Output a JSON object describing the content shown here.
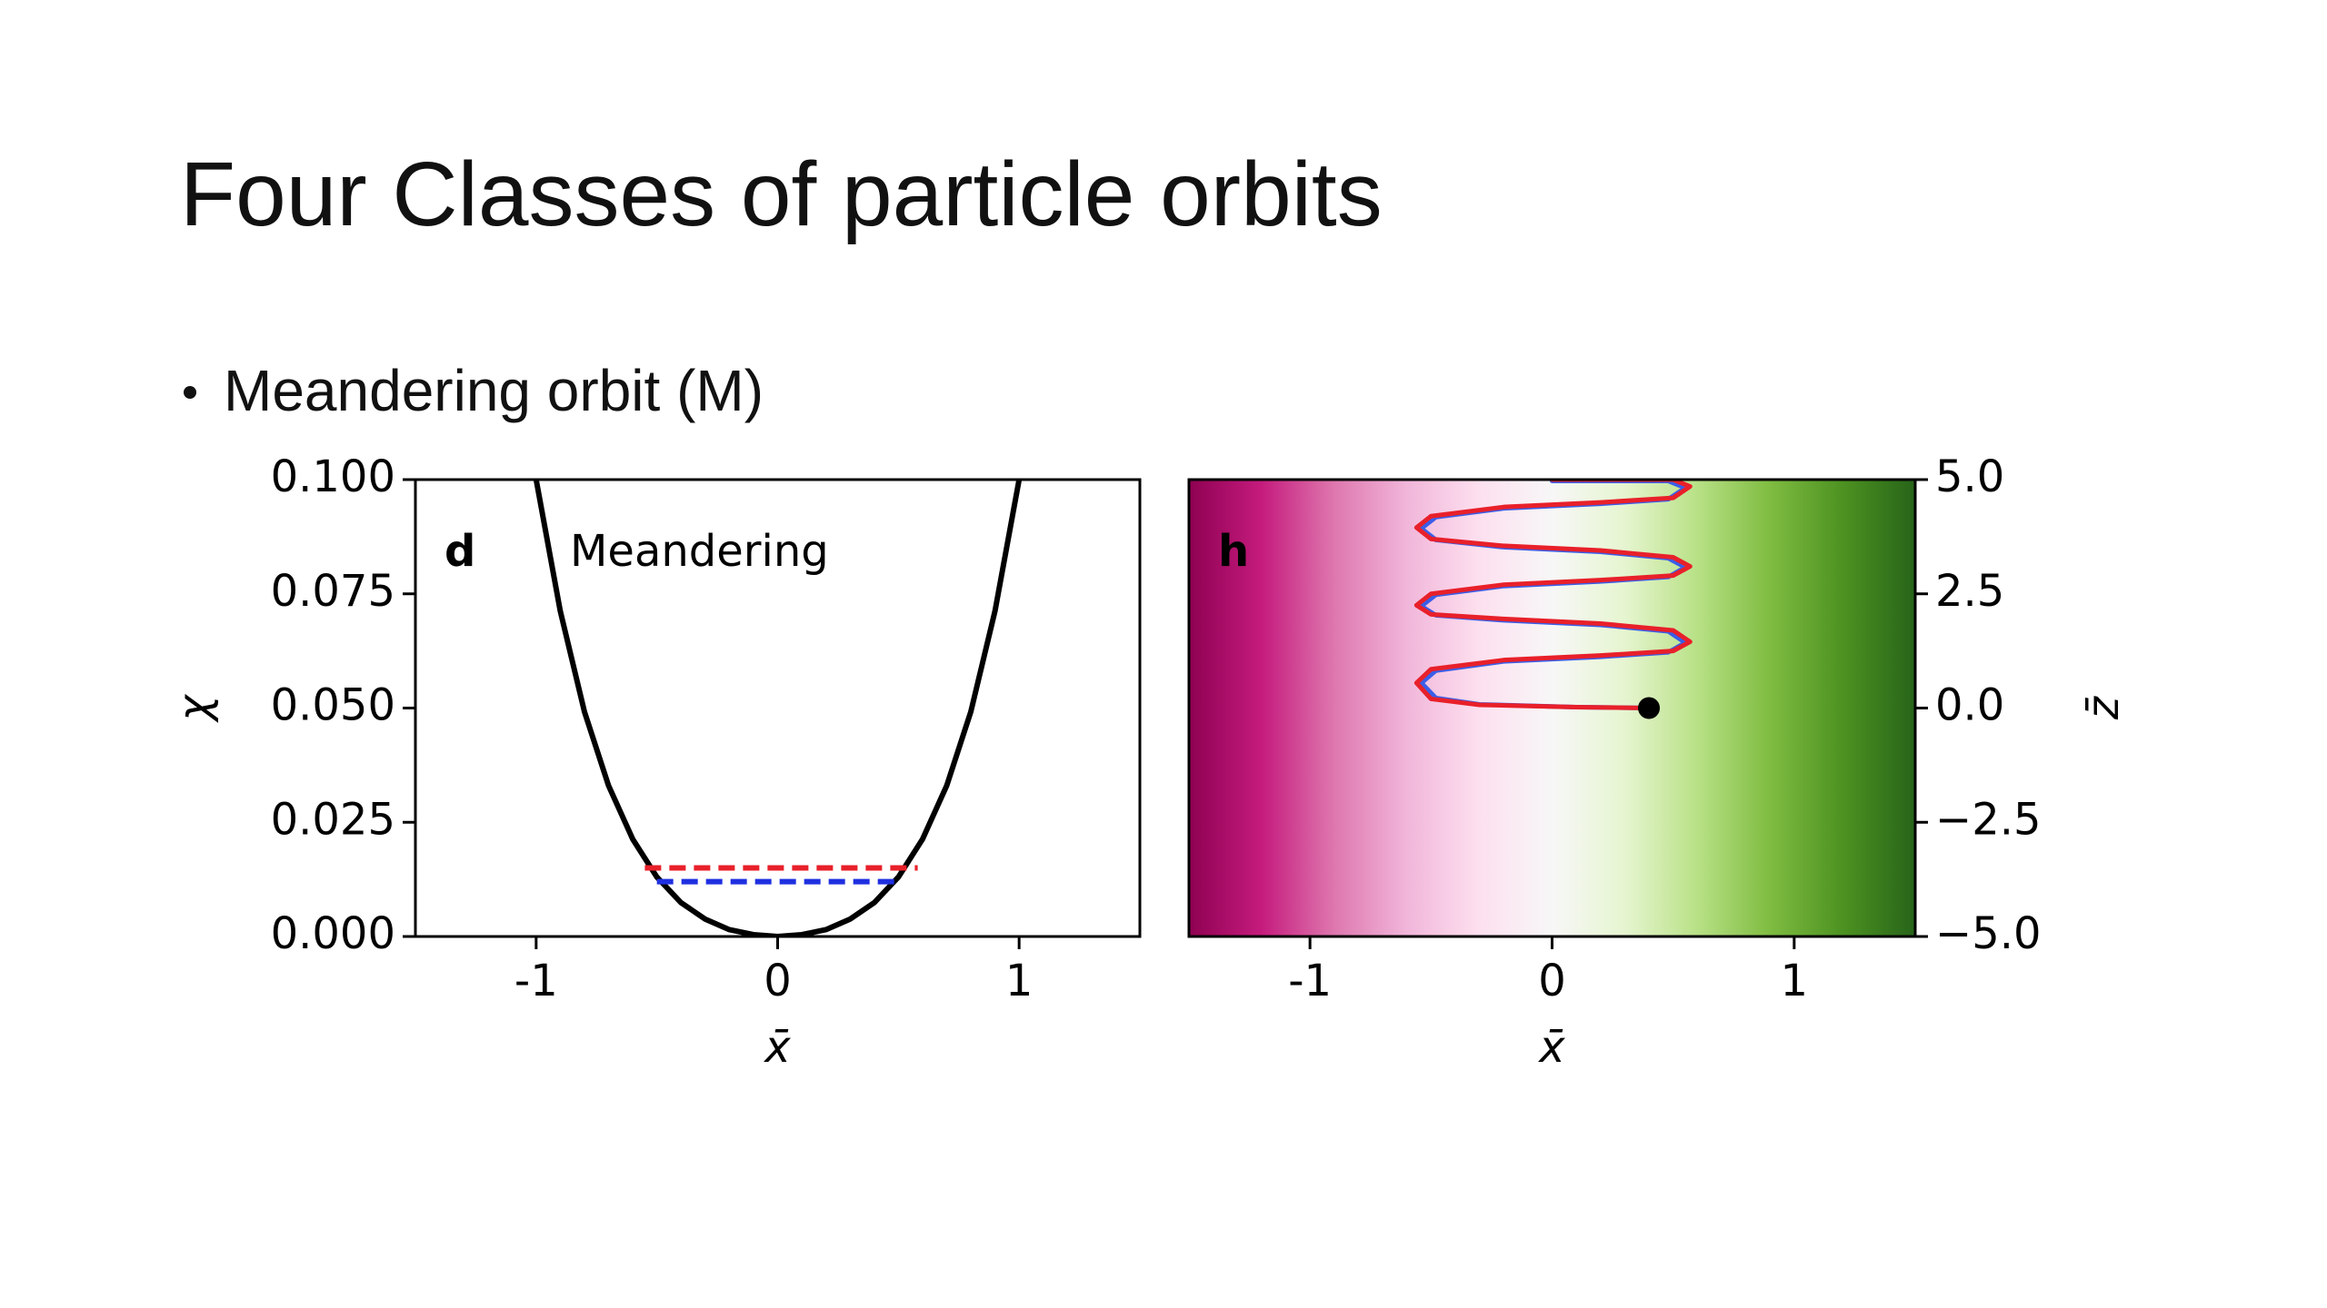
{
  "header": {
    "title": "Four Classes of particle orbits",
    "bullet": "Meandering orbit (M)"
  },
  "chart_data": [
    {
      "type": "line",
      "panel_label": "d",
      "annotation": "Meandering",
      "x_label": "x̄",
      "y_label": "χ",
      "xlim": [
        -1.5,
        1.5
      ],
      "xticks": [
        -1,
        0,
        1
      ],
      "ylim": [
        0,
        0.1
      ],
      "yticks": [
        {
          "value": 0,
          "label": "0.000"
        },
        {
          "value": 0.025,
          "label": "0.025"
        },
        {
          "value": 0.05,
          "label": "0.050"
        },
        {
          "value": 0.075,
          "label": "0.075"
        },
        {
          "value": 0.1,
          "label": "0.100"
        }
      ],
      "y_axis_side": "left",
      "series": [
        {
          "color": "#000000",
          "dashed": false,
          "x": [
            -1,
            -0.9,
            -0.8,
            -0.7,
            -0.6,
            -0.5,
            -0.4,
            -0.3,
            -0.2,
            -0.1,
            0,
            0.1,
            0.2,
            0.3,
            0.4,
            0.5,
            0.6,
            0.7,
            0.8,
            0.9,
            1
          ],
          "values": [
            0.1,
            0.0712,
            0.0492,
            0.033,
            0.0213,
            0.013,
            0.0074,
            0.0038,
            0.0015,
            0.0004,
            0,
            0.0004,
            0.0015,
            0.0038,
            0.0074,
            0.013,
            0.0213,
            0.033,
            0.0492,
            0.0712,
            0.1
          ]
        },
        {
          "color": "#e8202a",
          "dashed": true,
          "x": [
            -0.55,
            0.58
          ],
          "values": [
            0.015,
            0.015
          ]
        },
        {
          "color": "#1f2fe0",
          "dashed": true,
          "x": [
            -0.5,
            0.5
          ],
          "values": [
            0.012,
            0.012
          ]
        }
      ]
    },
    {
      "type": "line",
      "panel_label": "h",
      "x_label": "x̄",
      "y_label": "z̄",
      "xlim": [
        -1.5,
        1.5
      ],
      "xticks": [
        -1,
        0,
        1
      ],
      "ylim": [
        -5,
        5
      ],
      "yticks": [
        {
          "value": -5,
          "label": "−5.0"
        },
        {
          "value": -2.5,
          "label": "−2.5"
        },
        {
          "value": 0,
          "label": "0.0"
        },
        {
          "value": 2.5,
          "label": "2.5"
        },
        {
          "value": 5,
          "label": "5.0"
        }
      ],
      "y_axis_side": "right",
      "background_colormap": [
        "#8e0152",
        "#c51b7d",
        "#de77ae",
        "#f1b6da",
        "#fde0ef",
        "#f7f7f7",
        "#e6f5d0",
        "#b8e186",
        "#7fbc41",
        "#4d9221",
        "#276419"
      ],
      "series": [
        {
          "color": "#3a5ee8",
          "dashed": false,
          "x": [
            0.4,
            0.1,
            -0.3,
            -0.48,
            -0.54,
            -0.48,
            -0.2,
            0.2,
            0.48,
            0.55,
            0.48,
            0.2,
            -0.2,
            -0.48,
            -0.54,
            -0.48,
            -0.2,
            0.2,
            0.48,
            0.55,
            0.48,
            0.2,
            -0.2,
            -0.48,
            -0.54,
            -0.48,
            -0.2,
            0.2,
            0.48,
            0.55,
            0.48,
            0.2,
            0.0
          ],
          "values": [
            0,
            0.02,
            0.08,
            0.22,
            0.55,
            0.82,
            1.02,
            1.12,
            1.22,
            1.43,
            1.68,
            1.82,
            1.92,
            2.03,
            2.23,
            2.48,
            2.67,
            2.77,
            2.87,
            3.08,
            3.28,
            3.42,
            3.52,
            3.68,
            3.93,
            4.18,
            4.37,
            4.47,
            4.57,
            4.82,
            4.97,
            4.97,
            4.97
          ]
        },
        {
          "color": "#e8202a",
          "dashed": false,
          "x": [
            0.4,
            0.1,
            -0.3,
            -0.5,
            -0.56,
            -0.5,
            -0.2,
            0.2,
            0.5,
            0.57,
            0.5,
            0.2,
            -0.2,
            -0.5,
            -0.56,
            -0.5,
            -0.2,
            0.2,
            0.5,
            0.57,
            0.5,
            0.2,
            -0.2,
            -0.5,
            -0.56,
            -0.5,
            -0.2,
            0.2,
            0.5,
            0.57,
            0.5,
            0.2,
            0.0
          ],
          "values": [
            0,
            0.02,
            0.07,
            0.2,
            0.55,
            0.85,
            1.05,
            1.15,
            1.25,
            1.45,
            1.7,
            1.85,
            1.95,
            2.05,
            2.25,
            2.5,
            2.7,
            2.8,
            2.9,
            3.1,
            3.3,
            3.45,
            3.55,
            3.7,
            3.95,
            4.2,
            4.4,
            4.5,
            4.6,
            4.85,
            5.0,
            5.0,
            5.0
          ]
        }
      ],
      "marker": {
        "x": 0.4,
        "value": 0,
        "color": "#000000"
      }
    }
  ]
}
